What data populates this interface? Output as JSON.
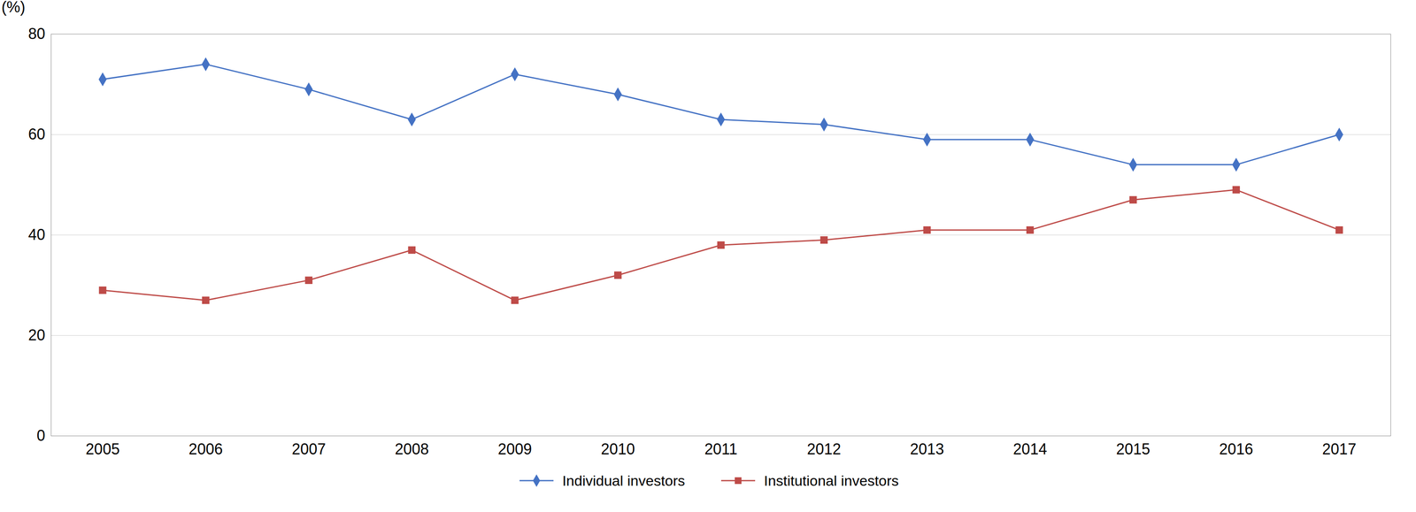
{
  "chart_data": {
    "type": "line",
    "x": [
      2005,
      2006,
      2007,
      2008,
      2009,
      2010,
      2011,
      2012,
      2013,
      2014,
      2015,
      2016,
      2017
    ],
    "series": [
      {
        "name": "Individual investors",
        "color": "#4472C4",
        "marker": "diamond",
        "values": [
          71,
          74,
          69,
          63,
          72,
          68,
          63,
          62,
          59,
          59,
          54,
          54,
          60
        ]
      },
      {
        "name": "Institutional investors",
        "color": "#BE4B48",
        "marker": "square",
        "values": [
          29,
          27,
          31,
          37,
          27,
          32,
          38,
          39,
          41,
          41,
          47,
          49,
          41
        ]
      }
    ],
    "ylabel": "(%)",
    "xlim": [
      2004.5,
      2017.5
    ],
    "xticks": [
      2005,
      2006,
      2007,
      2008,
      2009,
      2010,
      2011,
      2012,
      2013,
      2014,
      2015,
      2016,
      2017
    ],
    "ylim": [
      0,
      80
    ],
    "yticks": [
      0,
      20,
      40,
      60,
      80
    ],
    "grid": true,
    "legend": "bottom"
  }
}
